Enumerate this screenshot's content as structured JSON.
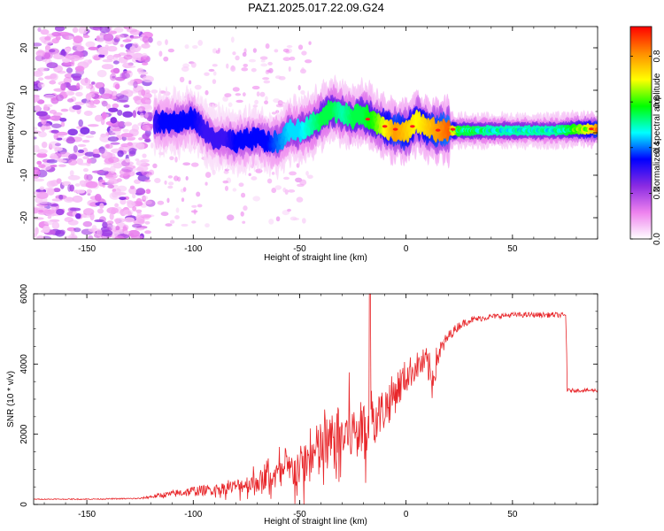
{
  "title": "PAZ1.2025.017.22.09.G24",
  "chart_data": [
    {
      "type": "heatmap",
      "xlabel": "Height of straight line (km)",
      "ylabel": "Frequency (Hz)",
      "xlim": [
        -175,
        90
      ],
      "ylim": [
        -25,
        25
      ],
      "xticks": [
        -150,
        -100,
        -50,
        0,
        50
      ],
      "yticks": [
        -20,
        -10,
        0,
        10,
        20
      ],
      "colorbar": {
        "label": "Normalized spectral amplitude",
        "range": [
          0,
          0.93
        ],
        "ticks": [
          0.0,
          0.2,
          0.4,
          0.6,
          0.8
        ],
        "colormap": [
          "#ffffff",
          "#ee82ee",
          "#8a2be2",
          "#0000ff",
          "#00ffff",
          "#00ff00",
          "#ffff00",
          "#ff8c00",
          "#ff0000"
        ]
      },
      "ridge": {
        "x": [
          -118,
          -115,
          -110,
          -105,
          -100,
          -95,
          -90,
          -85,
          -80,
          -75,
          -70,
          -65,
          -60,
          -55,
          -50,
          -45,
          -40,
          -35,
          -30,
          -25,
          -20,
          -15,
          -10,
          -5,
          0,
          5,
          10,
          15,
          20,
          25,
          30,
          40,
          50,
          60,
          70,
          80,
          90
        ],
        "y": [
          2.5,
          2.5,
          2.5,
          2.5,
          3.5,
          0.5,
          -1.5,
          -1.5,
          -2.5,
          -1.8,
          -1.2,
          -2.2,
          -2.5,
          0.5,
          0.5,
          1.5,
          3.5,
          5.5,
          4.5,
          3.5,
          4.5,
          2.5,
          1.5,
          0.5,
          0.2,
          2.8,
          1.0,
          0.5,
          0.5,
          0.5,
          0.5,
          0.5,
          0.5,
          0.5,
          0.5,
          0.8,
          0.8
        ],
        "amplitude": [
          0.3,
          0.35,
          0.35,
          0.35,
          0.35,
          0.3,
          0.3,
          0.3,
          0.35,
          0.35,
          0.35,
          0.35,
          0.4,
          0.45,
          0.45,
          0.5,
          0.55,
          0.55,
          0.5,
          0.55,
          0.55,
          0.6,
          0.7,
          0.8,
          0.75,
          0.7,
          0.75,
          0.8,
          0.85,
          0.55,
          0.55,
          0.5,
          0.5,
          0.5,
          0.5,
          0.6,
          0.8
        ]
      },
      "noise_region": {
        "x_range": [
          -175,
          -120
        ],
        "amplitude_range": [
          0.05,
          0.25
        ]
      }
    },
    {
      "type": "line",
      "xlabel": "Height of straight line (km)",
      "ylabel": "SNR (10 * v/v)",
      "xlim": [
        -175,
        90
      ],
      "ylim": [
        0,
        6000
      ],
      "xticks": [
        -150,
        -100,
        -50,
        0,
        50
      ],
      "yticks": [
        0,
        2000,
        4000,
        6000
      ],
      "series": [
        {
          "color": "#e8262a",
          "x": [
            -175,
            -150,
            -125,
            -120,
            -110,
            -100,
            -90,
            -80,
            -70,
            -60,
            -50,
            -45,
            -40,
            -35,
            -30,
            -25,
            -20,
            -15,
            -10,
            -5,
            0,
            5,
            10,
            12,
            15,
            20,
            25,
            30,
            40,
            50,
            60,
            70,
            75,
            76,
            80,
            90
          ],
          "y": [
            150,
            150,
            170,
            220,
            300,
            380,
            420,
            520,
            650,
            850,
            1050,
            1300,
            1550,
            1750,
            1950,
            2050,
            2200,
            2400,
            2750,
            3200,
            3650,
            3950,
            4050,
            3500,
            4250,
            4800,
            5100,
            5250,
            5350,
            5400,
            5400,
            5400,
            5380,
            3300,
            3250,
            3250
          ],
          "spike_amplitude": [
            20,
            30,
            40,
            100,
            200,
            300,
            300,
            400,
            600,
            800,
            1200,
            1500,
            1800,
            1700,
            1700,
            1600,
            1500,
            1400,
            1300,
            1200,
            1000,
            800,
            900,
            1300,
            700,
            300,
            250,
            200,
            150,
            150,
            150,
            150,
            150,
            120,
            100,
            100
          ]
        }
      ]
    }
  ]
}
